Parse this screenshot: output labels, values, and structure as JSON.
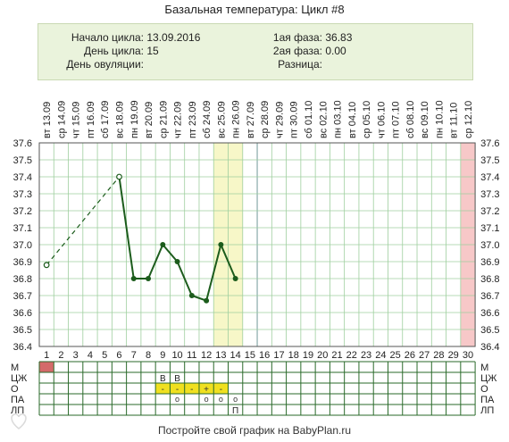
{
  "title": "Базальная температура: Цикл #8",
  "info": {
    "cycle_start_label": "Начало цикла:",
    "cycle_start": "13.09.2016",
    "cycle_day_label": "День цикла:",
    "cycle_day": "15",
    "ovulation_day_label": "День овуляции:",
    "ovulation_day": "",
    "phase1_label": "1ая фаза:",
    "phase1": "36.83",
    "phase2_label": "2ая фаза:",
    "phase2": "0.00",
    "diff_label": "Разница:",
    "diff": ""
  },
  "footer": {
    "prefix": "Постройте свой график на ",
    "link": "BabyPlan.ru"
  },
  "chart_data": {
    "type": "line",
    "dates": [
      "13.09",
      "14.09",
      "15.09",
      "16.09",
      "17.09",
      "18.09",
      "19.09",
      "20.09",
      "21.09",
      "22.09",
      "23.09",
      "24.09",
      "25.09",
      "26.09",
      "27.09",
      "28.09",
      "29.09",
      "30.09",
      "01.10",
      "02.10",
      "03.10",
      "04.10",
      "05.10",
      "06.10",
      "07.10",
      "08.10",
      "09.10",
      "10.10",
      "11.10",
      "12.10"
    ],
    "weekdays": [
      "вт",
      "ср",
      "чт",
      "пт",
      "сб",
      "вс",
      "пн",
      "вт",
      "ср",
      "чт",
      "пт",
      "сб",
      "вс",
      "пн",
      "вт",
      "ср",
      "чт",
      "пт",
      "сб",
      "вс",
      "пн",
      "вт",
      "ср",
      "чт",
      "пт",
      "сб",
      "вс",
      "пн",
      "вт",
      "ср"
    ],
    "x": [
      1,
      2,
      3,
      4,
      5,
      6,
      7,
      8,
      9,
      10,
      11,
      12,
      13,
      14,
      15,
      16,
      17,
      18,
      19,
      20,
      21,
      22,
      23,
      24,
      25,
      26,
      27,
      28,
      29,
      30
    ],
    "ylim": [
      36.4,
      37.6
    ],
    "yticks": [
      "37.6",
      "37.5",
      "37.4",
      "37.3",
      "37.2",
      "37.1",
      "37.0",
      "36.9",
      "36.8",
      "36.7",
      "36.6",
      "36.5",
      "36.4"
    ],
    "series": [
      {
        "name": "",
        "points": [
          {
            "day": 1,
            "temp": 36.88,
            "open": true
          },
          {
            "day": 6,
            "temp": 37.4,
            "open": true
          },
          {
            "day": 7,
            "temp": 36.8
          },
          {
            "day": 8,
            "temp": 36.8
          },
          {
            "day": 9,
            "temp": 37.0
          },
          {
            "day": 10,
            "temp": 36.9
          },
          {
            "day": 11,
            "temp": 36.7
          },
          {
            "day": 12,
            "temp": 36.67
          },
          {
            "day": 13,
            "temp": 37.0
          },
          {
            "day": 14,
            "temp": 36.8
          }
        ],
        "dashed_between": [
          [
            1,
            6
          ]
        ]
      }
    ],
    "highlight_days": [
      13,
      14
    ],
    "highlight_color": "#f7f7c8",
    "today_day": 15,
    "end_day": 30,
    "end_color": "#f7c8c8",
    "line_color": "#1c5c1c",
    "grid": true,
    "bottom_rows": {
      "labels": [
        "М",
        "ЦЖ",
        "О",
        "ПА",
        "ЛП"
      ],
      "m_days": [
        1
      ],
      "m_color": "#d46a6a",
      "cz_marks": [
        {
          "day": 9,
          "text": "В"
        },
        {
          "day": 10,
          "text": "В"
        }
      ],
      "o_marks": [
        {
          "day": 9,
          "text": "-"
        },
        {
          "day": 10,
          "text": "-"
        },
        {
          "day": 11,
          "text": "-"
        },
        {
          "day": 12,
          "text": "+"
        },
        {
          "day": 13,
          "text": "-"
        }
      ],
      "o_color": "#f0e020",
      "pa_marks": [
        {
          "day": 10,
          "text": "o"
        },
        {
          "day": 12,
          "text": "o"
        },
        {
          "day": 13,
          "text": "o"
        },
        {
          "day": 14,
          "text": "o"
        }
      ],
      "lp_marks": [
        {
          "day": 14,
          "text": "П"
        }
      ]
    }
  }
}
